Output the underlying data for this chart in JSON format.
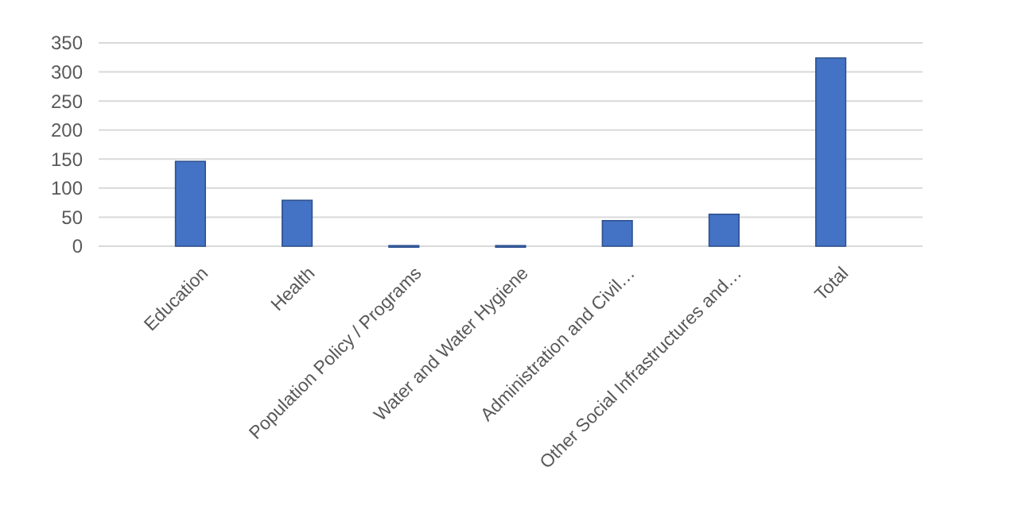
{
  "chart_data": {
    "type": "bar",
    "categories": [
      "Education",
      "Health",
      "Population Policy / Programs",
      "Water and Water Hygiene",
      "Administration and Civil…",
      "Other Social Infrastructures and…",
      "Total"
    ],
    "values": [
      146,
      79,
      1,
      1,
      44,
      55,
      324
    ],
    "color": "#4472c4",
    "ylim": [
      0,
      350
    ],
    "yticks": [
      0,
      50,
      100,
      150,
      200,
      250,
      300,
      350
    ],
    "grid": "y"
  }
}
